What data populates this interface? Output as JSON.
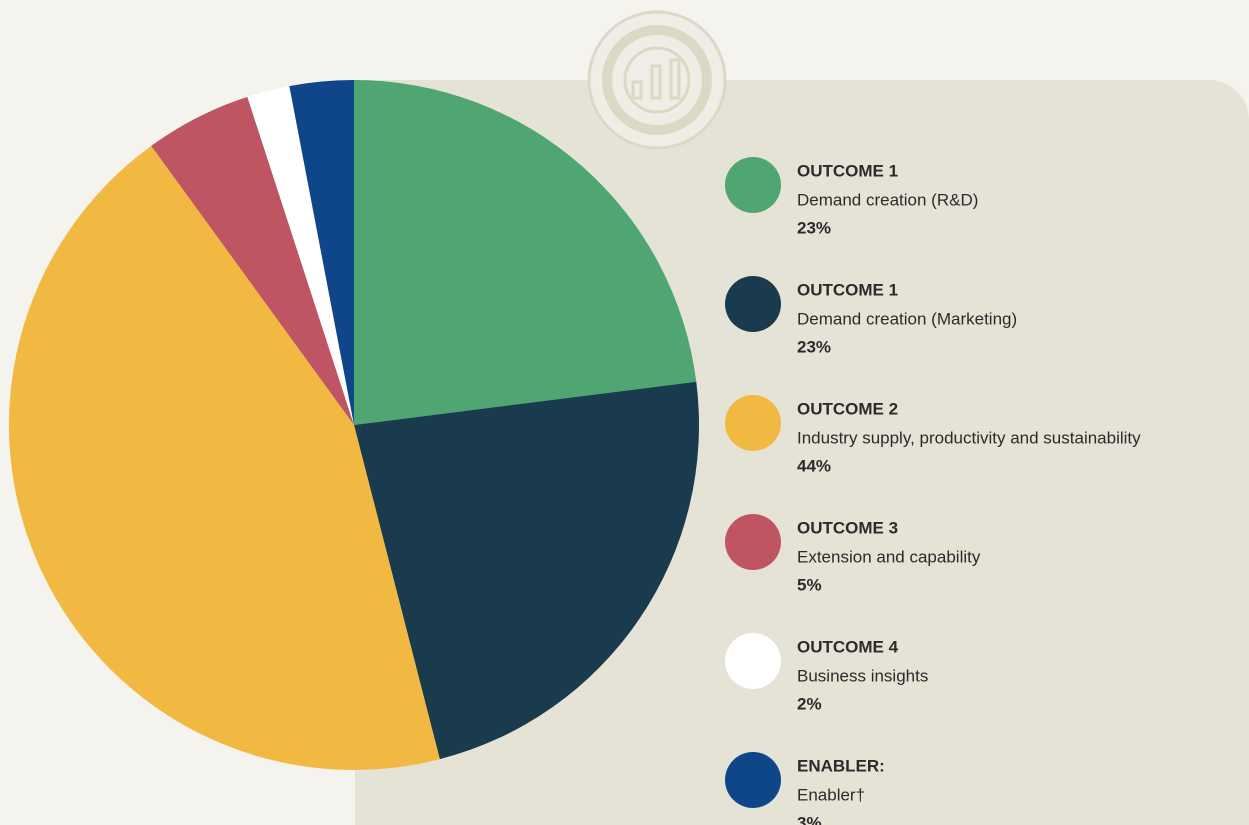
{
  "chart_data": {
    "type": "pie",
    "groups": [
      "OUTCOME 1",
      "OUTCOME 1",
      "OUTCOME 2",
      "OUTCOME 3",
      "OUTCOME 4",
      "ENABLER:"
    ],
    "categories": [
      "Demand creation (R&D)",
      "Demand creation (Marketing)",
      "Industry supply, productivity and sustainability",
      "Extension and capability",
      "Business insights",
      "Enabler†"
    ],
    "values": [
      23,
      23,
      44,
      5,
      2,
      3
    ],
    "value_labels": [
      "23%",
      "23%",
      "44%",
      "5%",
      "2%",
      "3%"
    ],
    "colors": [
      "#4fa672",
      "#193b4d",
      "#f2b942",
      "#bf5562",
      "#ffffff",
      "#0f4689"
    ]
  }
}
